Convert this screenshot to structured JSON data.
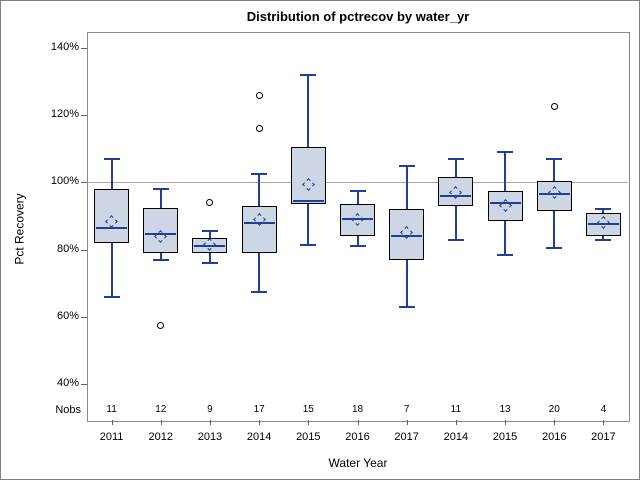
{
  "chart_data": {
    "type": "boxplot",
    "title": "Distribution of pctrecov by water_yr",
    "xlabel": "Water Year",
    "ylabel": "Pct Recovery",
    "nobs_row_label": "Nobs",
    "ylim": [
      40,
      140
    ],
    "yticks": [
      40,
      60,
      80,
      100,
      120,
      140
    ],
    "ytick_labels": [
      "40%",
      "60%",
      "80%",
      "100%",
      "120%",
      "140%"
    ],
    "reference_line_y": 100,
    "grid": "off",
    "legend": "none",
    "boxes": [
      {
        "category": "2011",
        "nobs": 11,
        "whisker_low": 66,
        "q1": 82,
        "median": 86.5,
        "q3": 98,
        "whisker_high": 107,
        "mean": 88.5,
        "outliers": []
      },
      {
        "category": "2012",
        "nobs": 12,
        "whisker_low": 77,
        "q1": 79,
        "median": 84.5,
        "q3": 92.5,
        "whisker_high": 98,
        "mean": 84,
        "outliers": [
          57.5
        ]
      },
      {
        "category": "2013",
        "nobs": 9,
        "whisker_low": 76,
        "q1": 79,
        "median": 81,
        "q3": 83.5,
        "whisker_high": 85.5,
        "mean": 81.5,
        "outliers": [
          94
        ]
      },
      {
        "category": "2014",
        "nobs": 17,
        "whisker_low": 67.5,
        "q1": 79,
        "median": 88,
        "q3": 93,
        "whisker_high": 102.5,
        "mean": 89,
        "outliers": [
          116,
          126
        ]
      },
      {
        "category": "2015",
        "nobs": 15,
        "whisker_low": 81.5,
        "q1": 93.5,
        "median": 94.5,
        "q3": 110.5,
        "whisker_high": 132,
        "mean": 99.5,
        "outliers": []
      },
      {
        "category": "2016",
        "nobs": 18,
        "whisker_low": 81,
        "q1": 84,
        "median": 89,
        "q3": 93.5,
        "whisker_high": 97.5,
        "mean": 89,
        "outliers": []
      },
      {
        "category": "2017",
        "nobs": 7,
        "whisker_low": 63,
        "q1": 77,
        "median": 84,
        "q3": 92,
        "whisker_high": 105,
        "mean": 85,
        "outliers": []
      },
      {
        "category": "2014",
        "nobs": 11,
        "whisker_low": 83,
        "q1": 93,
        "median": 96,
        "q3": 101.5,
        "whisker_high": 107,
        "mean": 97,
        "outliers": []
      },
      {
        "category": "2015",
        "nobs": 13,
        "whisker_low": 78.5,
        "q1": 88.5,
        "median": 94,
        "q3": 97.5,
        "whisker_high": 109,
        "mean": 93,
        "outliers": []
      },
      {
        "category": "2016",
        "nobs": 20,
        "whisker_low": 80.5,
        "q1": 91.5,
        "median": 96.5,
        "q3": 100.5,
        "whisker_high": 107,
        "mean": 97,
        "outliers": [
          122.5
        ]
      },
      {
        "category": "2017",
        "nobs": 4,
        "whisker_low": 83,
        "q1": 84,
        "median": 87.5,
        "q3": 91,
        "whisker_high": 92,
        "mean": 88,
        "outliers": []
      }
    ]
  },
  "colors": {
    "box_fill": "#ccd6e4",
    "box_border": "#000000",
    "blue_line": "#1f4096",
    "outlier": "#000000",
    "reference_line": "#a8a8a8",
    "frame": "#8a8a8a",
    "tick": "#5f5f5f",
    "text": "#000000",
    "background": "#ffffff"
  }
}
